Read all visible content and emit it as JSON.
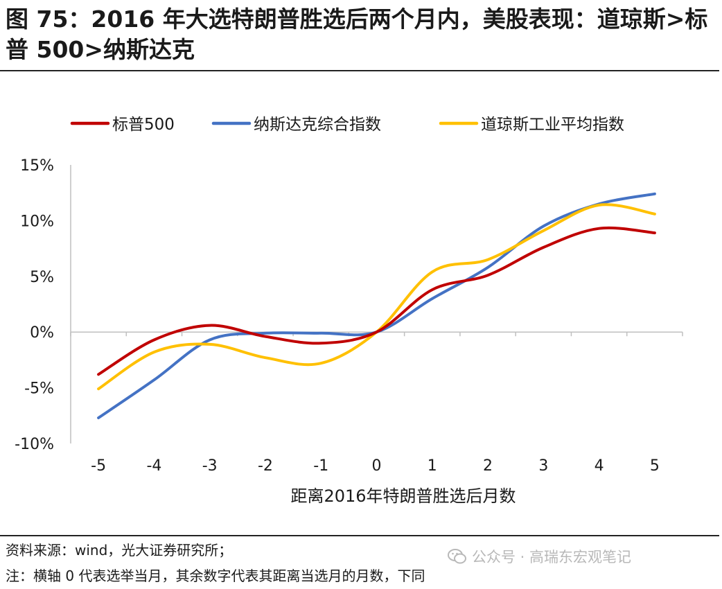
{
  "title": "图 75：2016 年大选特朗普胜选后两个月内，美股表现：道琼斯>标普 500>纳斯达克",
  "source": "资料来源：wind，光大证券研究所；",
  "note": "注：横轴 0 代表选举当月，其余数字代表其距离当选月的月数，下同",
  "watermark": "公众号 · 高瑞东宏观笔记",
  "chart_data": {
    "type": "line",
    "xlabel": "距离2016年特朗普胜选后月数",
    "ylabel": "",
    "x": [
      -5,
      -4,
      -3,
      -2,
      -1,
      0,
      1,
      2,
      3,
      4,
      5
    ],
    "x_tick_labels": [
      "-5",
      "-4",
      "-3",
      "-2",
      "-1",
      "0",
      "1",
      "2",
      "3",
      "4",
      "5"
    ],
    "ylim": [
      -10,
      15
    ],
    "y_ticks": [
      -10,
      -5,
      0,
      5,
      10,
      15
    ],
    "y_tick_labels": [
      "-10%",
      "-5%",
      "0%",
      "5%",
      "10%",
      "15%"
    ],
    "legend_position": "top",
    "series": [
      {
        "name": "标普500",
        "color": "#c00000",
        "values": [
          -3.8,
          -0.7,
          0.6,
          -0.4,
          -1.0,
          0.0,
          3.8,
          5.1,
          7.6,
          9.3,
          8.9
        ]
      },
      {
        "name": "纳斯达克综合指数",
        "color": "#4472c4",
        "values": [
          -7.7,
          -4.3,
          -0.7,
          -0.1,
          -0.1,
          0.0,
          3.0,
          5.8,
          9.5,
          11.5,
          12.4
        ]
      },
      {
        "name": "道琼斯工业平均指数",
        "color": "#ffc000",
        "values": [
          -5.1,
          -1.8,
          -1.1,
          -2.3,
          -2.8,
          0.0,
          5.4,
          6.5,
          9.1,
          11.4,
          10.6
        ]
      }
    ]
  }
}
